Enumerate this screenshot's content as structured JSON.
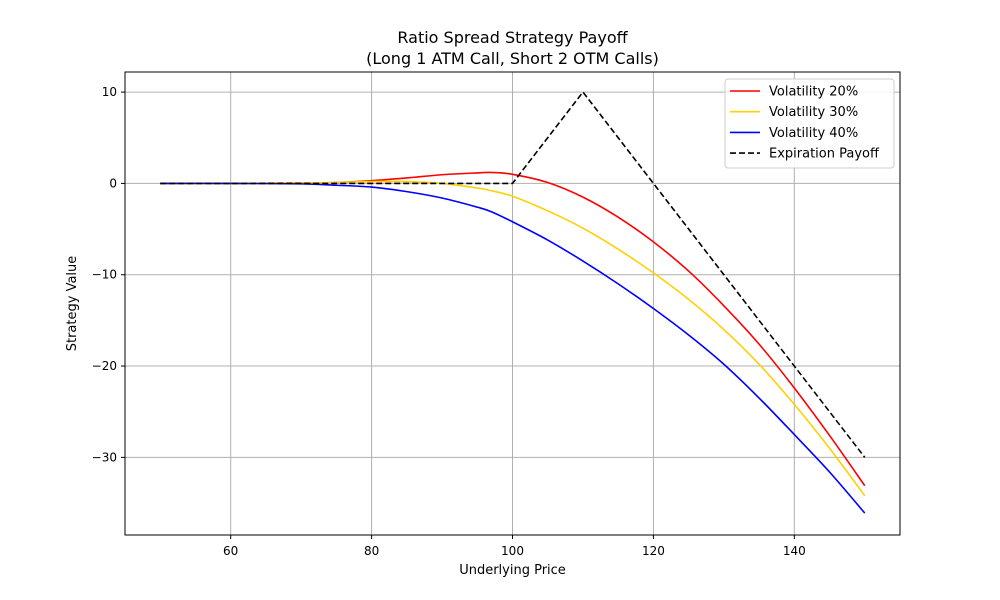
{
  "chart_data": {
    "type": "line",
    "title_line1": "Ratio Spread Strategy Payoff",
    "title_line2": "(Long 1 ATM Call, Short 2 OTM Calls)",
    "xlabel": "Underlying Price",
    "ylabel": "Strategy Value",
    "xlim": [
      45,
      155
    ],
    "ylim": [
      -38.5,
      12.2
    ],
    "xticks": [
      60,
      80,
      100,
      120,
      140
    ],
    "yticks": [
      10,
      0,
      -10,
      -20,
      -30
    ],
    "ytick_labels": [
      "10",
      "0",
      "−10",
      "−20",
      "−30"
    ],
    "grid": true,
    "legend_position": "upper right",
    "x": [
      50,
      60,
      70,
      75,
      80,
      85,
      90,
      95,
      97,
      100,
      105,
      110,
      115,
      120,
      125,
      130,
      135,
      140,
      145,
      150
    ],
    "series": [
      {
        "name": "Volatility 20%",
        "color": "#ff0000",
        "dash": false,
        "values": [
          0,
          0,
          0.05,
          0.1,
          0.3,
          0.6,
          0.95,
          1.15,
          1.2,
          1.0,
          0.1,
          -1.5,
          -3.7,
          -6.4,
          -9.6,
          -13.4,
          -17.6,
          -22.4,
          -27.6,
          -33.1
        ]
      },
      {
        "name": "Volatility 30%",
        "color": "#ffd000",
        "dash": false,
        "values": [
          0,
          0,
          0.05,
          0.1,
          0.2,
          0.2,
          0.0,
          -0.5,
          -0.8,
          -1.4,
          -3.0,
          -4.9,
          -7.2,
          -9.8,
          -12.7,
          -16.0,
          -19.8,
          -24.2,
          -29.0,
          -34.2
        ]
      },
      {
        "name": "Volatility 40%",
        "color": "#0000ff",
        "dash": false,
        "values": [
          0,
          0,
          -0.05,
          -0.2,
          -0.4,
          -0.9,
          -1.6,
          -2.6,
          -3.1,
          -4.2,
          -6.2,
          -8.5,
          -11.0,
          -13.7,
          -16.6,
          -19.8,
          -23.5,
          -27.5,
          -31.6,
          -36.1
        ]
      },
      {
        "name": "Expiration Payoff",
        "color": "#000000",
        "dash": true,
        "x": [
          50,
          100,
          110,
          150
        ],
        "values": [
          0,
          0,
          10,
          -30
        ]
      }
    ]
  }
}
